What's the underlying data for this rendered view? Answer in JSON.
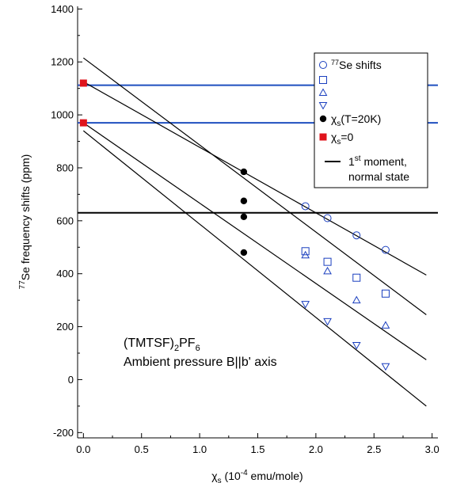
{
  "chart_data": {
    "type": "scatter",
    "xlim": [
      -0.05,
      3.05
    ],
    "ylim": [
      -220,
      1410
    ],
    "x_ticks": [
      "0.0",
      "0.5",
      "1.0",
      "1.5",
      "2.0",
      "2.5",
      "3.0"
    ],
    "y_ticks": [
      "-200",
      "0",
      "200",
      "400",
      "600",
      "800",
      "1000",
      "1200",
      "1400"
    ],
    "ylabel_parts": {
      "sup": "77",
      "text": "Se frequency shifts (ppm)"
    },
    "xlabel_parts": {
      "chi": "χ",
      "sub": "s",
      "text": " (10",
      "sup": "-4",
      "tail": " emu/mole)"
    },
    "colors": {
      "shift_symbols": "#1a3fbf",
      "hline_blue": "#1f4fbf",
      "red_square": "#e0141c",
      "black": "#000000"
    },
    "series": [
      {
        "symbol": "circle",
        "x": [
          1.91,
          2.1,
          2.35,
          2.6
        ],
        "y": [
          655,
          610,
          545,
          490
        ]
      },
      {
        "symbol": "square",
        "x": [
          1.91,
          2.1,
          2.35,
          2.6
        ],
        "y": [
          485,
          445,
          385,
          325
        ]
      },
      {
        "symbol": "triangle-up",
        "x": [
          1.91,
          2.1,
          2.35,
          2.6
        ],
        "y": [
          470,
          410,
          300,
          205
        ]
      },
      {
        "symbol": "triangle-down",
        "x": [
          1.91,
          2.1,
          2.35,
          2.6
        ],
        "y": [
          285,
          220,
          130,
          50
        ]
      }
    ],
    "chi_s_T20K": {
      "x": [
        1.38,
        1.38,
        1.38,
        1.38
      ],
      "y": [
        785,
        675,
        615,
        480
      ]
    },
    "chi_s_0": {
      "x": [
        0.0,
        0.0
      ],
      "y": [
        1120,
        970
      ]
    },
    "horizontal_lines": [
      {
        "color": "blue",
        "y": 1112
      },
      {
        "color": "blue",
        "y": 970
      },
      {
        "color": "black",
        "y": 630
      }
    ],
    "fit_lines": [
      {
        "x": [
          0.0,
          2.95
        ],
        "y": [
          1125,
          395
        ]
      },
      {
        "x": [
          0.0,
          2.95
        ],
        "y": [
          1215,
          245
        ]
      },
      {
        "x": [
          0.0,
          2.95
        ],
        "y": [
          970,
          75
        ]
      },
      {
        "x": [
          0.0,
          2.95
        ],
        "y": [
          940,
          -100
        ]
      }
    ],
    "legend": {
      "placement": "top-right",
      "entries": [
        {
          "symbol": "circle",
          "sup": "77",
          "label": "Se shifts"
        },
        {
          "symbol": "square"
        },
        {
          "symbol": "triangle-up"
        },
        {
          "symbol": "triangle-down"
        },
        {
          "symbol": "black-dot",
          "label_main": "χ",
          "label_sub": "s",
          "label_tail": "(T=20K)"
        },
        {
          "symbol": "red-square",
          "label_main": "χ",
          "label_sub": "s",
          "label_tail": "=0"
        },
        {
          "symbol": "black-line",
          "label_line1_pre": "1",
          "label_line1_sup": "st",
          "label_line1_post": " moment,",
          "label_line2": "normal state"
        }
      ]
    },
    "annotation": {
      "line1_pre": "(TMTSF)",
      "line1_sub1": "2",
      "line1_mid": "PF",
      "line1_sub2": "6",
      "line2": "Ambient pressure B||b' axis"
    }
  }
}
